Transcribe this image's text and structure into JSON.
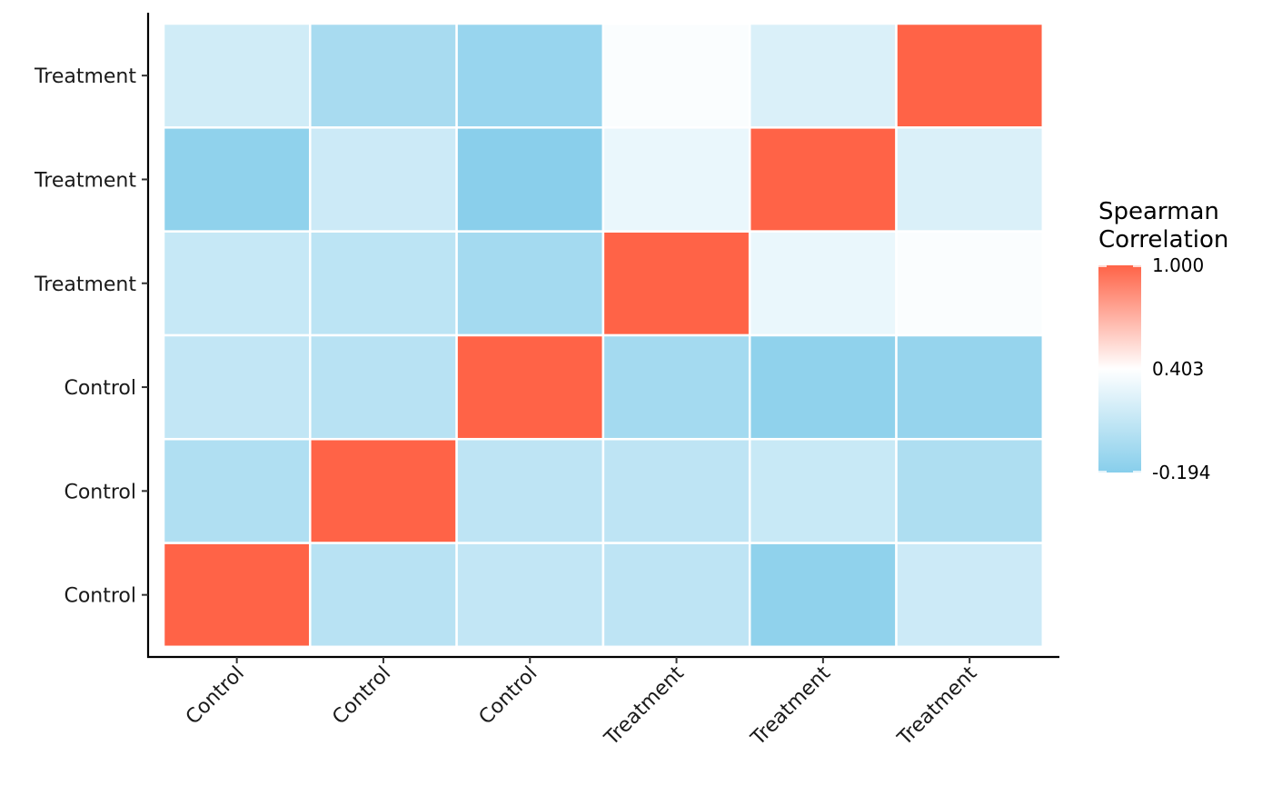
{
  "chart_data": {
    "type": "heatmap",
    "title": "",
    "xlabel": "",
    "ylabel": "",
    "x_categories": [
      "Control",
      "Control",
      "Control",
      "Treatment",
      "Treatment",
      "Treatment"
    ],
    "y_categories": [
      "Control",
      "Control",
      "Control",
      "Treatment",
      "Treatment",
      "Treatment"
    ],
    "matrix": [
      [
        1.0,
        0.05,
        0.1,
        0.08,
        -0.15,
        0.15
      ],
      [
        0.01,
        1.0,
        0.08,
        0.08,
        0.13,
        0.0
      ],
      [
        0.1,
        0.05,
        1.0,
        -0.05,
        -0.15,
        -0.12
      ],
      [
        0.12,
        0.07,
        -0.05,
        1.0,
        0.3,
        0.38
      ],
      [
        -0.15,
        0.15,
        -0.18,
        0.3,
        1.0,
        0.22
      ],
      [
        0.17,
        -0.03,
        -0.11,
        0.38,
        0.22,
        1.0
      ]
    ],
    "legend": {
      "title_lines": [
        "Spearman",
        "Correlation"
      ],
      "min": -0.194,
      "mid": 0.403,
      "max": 1.0,
      "labels": [
        "1.000",
        "0.403",
        "-0.194"
      ],
      "low_color": "#87CEEB",
      "mid_color": "#FFFFFF",
      "high_color": "#FF6347",
      "position": "right"
    },
    "grid": false
  }
}
